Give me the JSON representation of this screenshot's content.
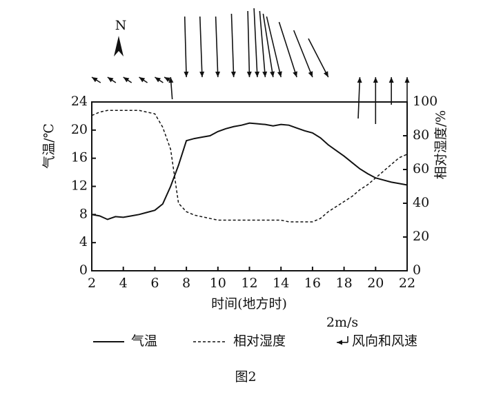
{
  "chart_data": {
    "type": "line",
    "title": "图2",
    "x_label": "时间(地方时)",
    "y_label": "气温/℃",
    "y2_label": "相对湿度/%",
    "north_label": "N",
    "wind_legend": "风向和风速",
    "wind_legend_speed": {
      "value": 2,
      "label": "2m/s"
    },
    "x": [
      2,
      2.5,
      3,
      3.5,
      4,
      4.5,
      5,
      5.5,
      6,
      6.5,
      7,
      7.5,
      8,
      8.5,
      9,
      9.5,
      10,
      10.5,
      11,
      11.5,
      12,
      12.5,
      13,
      13.5,
      14,
      14.5,
      15,
      15.5,
      16,
      16.5,
      17,
      17.5,
      18,
      18.5,
      19,
      19.5,
      20,
      20.5,
      21,
      21.5,
      22
    ],
    "series": [
      {
        "name": "气温",
        "color": "#111111",
        "style": "solid",
        "axis": "y",
        "values": [
          8,
          7.8,
          7.3,
          7.7,
          7.6,
          7.8,
          8,
          8.3,
          8.6,
          9.5,
          12,
          15,
          18.5,
          18.8,
          19,
          19.2,
          19.8,
          20.2,
          20.5,
          20.7,
          21,
          20.9,
          20.8,
          20.6,
          20.8,
          20.7,
          20.3,
          19.9,
          19.6,
          18.9,
          17.9,
          17.1,
          16.3,
          15.4,
          14.5,
          13.8,
          13.2,
          12.9,
          12.6,
          12.4,
          12.2
        ]
      },
      {
        "name": "相对湿度",
        "color": "#111111",
        "style": "dashed",
        "axis": "y2",
        "values": [
          92,
          94,
          95,
          95,
          95,
          95,
          95,
          94,
          93,
          85,
          72,
          40,
          35,
          33,
          32,
          31,
          30,
          30,
          30,
          30,
          30,
          30,
          30,
          30,
          30,
          29,
          29,
          29,
          29,
          31,
          35,
          38,
          41,
          44,
          48,
          51,
          55,
          59,
          63,
          67,
          69
        ]
      }
    ],
    "wind": {
      "x": [
        2,
        3,
        4,
        5,
        6,
        6.6,
        7,
        8,
        9,
        10,
        11,
        12,
        12.5,
        13,
        13.5,
        14,
        15,
        16,
        17,
        19,
        20,
        21,
        22
      ],
      "u": [
        -1.6,
        -1.5,
        -1.5,
        -1.5,
        -1.5,
        -1.4,
        -0.3,
        0.3,
        0.4,
        0.4,
        0.4,
        0.3,
        0.6,
        1,
        1.8,
        2.6,
        3.2,
        3.4,
        3.6,
        0.3,
        0,
        0,
        0
      ],
      "v": [
        1,
        1,
        1,
        1,
        1,
        0.8,
        4,
        -11,
        -11,
        -11,
        -11.5,
        -12,
        -12.5,
        -12,
        -11.5,
        -11,
        -10,
        -8.5,
        -7,
        7.5,
        8.5,
        5,
        5
      ]
    },
    "xlim": [
      2,
      22
    ],
    "xticks": [
      2,
      4,
      6,
      8,
      10,
      12,
      14,
      16,
      18,
      20,
      22
    ],
    "ylim": [
      0,
      24
    ],
    "yticks": [
      0,
      4,
      8,
      12,
      16,
      20,
      24
    ],
    "y2lim": [
      0,
      100
    ],
    "y2ticks": [
      0,
      20,
      40,
      60,
      80,
      100
    ],
    "grid": false
  }
}
